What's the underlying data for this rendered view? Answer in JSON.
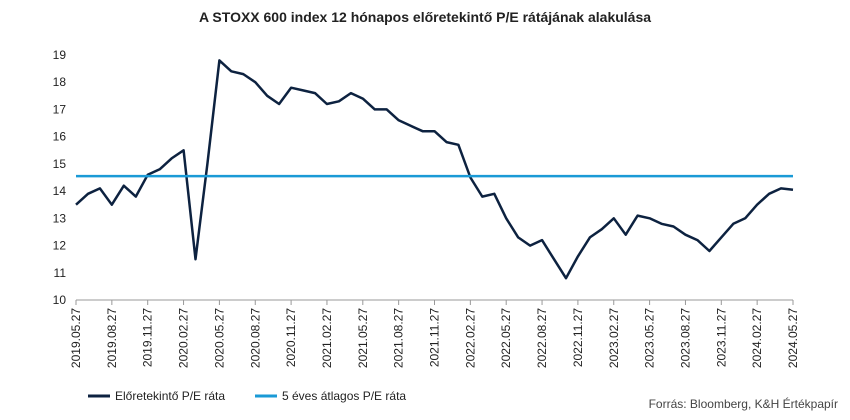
{
  "chart_data": {
    "type": "line",
    "title": "A STOXX 600 index 12 hónapos előretekintő P/E rátájának alakulása",
    "source": "Forrás: Bloomberg, K&H Értékpapír",
    "x": [
      "2019.05.27",
      "2019.06.27",
      "2019.07.27",
      "2019.08.27",
      "2019.09.27",
      "2019.10.27",
      "2019.11.27",
      "2019.12.27",
      "2020.01.27",
      "2020.02.27",
      "2020.03.27",
      "2020.04.27",
      "2020.05.27",
      "2020.06.27",
      "2020.07.27",
      "2020.08.27",
      "2020.09.27",
      "2020.10.27",
      "2020.11.27",
      "2020.12.27",
      "2021.01.27",
      "2021.02.27",
      "2021.03.27",
      "2021.04.27",
      "2021.05.27",
      "2021.06.27",
      "2021.07.27",
      "2021.08.27",
      "2021.09.27",
      "2021.10.27",
      "2021.11.27",
      "2021.12.27",
      "2022.01.27",
      "2022.02.27",
      "2022.03.27",
      "2022.04.27",
      "2022.05.27",
      "2022.06.27",
      "2022.07.27",
      "2022.08.27",
      "2022.09.27",
      "2022.10.27",
      "2022.11.27",
      "2022.12.27",
      "2023.01.27",
      "2023.02.27",
      "2023.03.27",
      "2023.04.27",
      "2023.05.27",
      "2023.06.27",
      "2023.07.27",
      "2023.08.27",
      "2023.09.27",
      "2023.10.27",
      "2023.11.27",
      "2023.12.27",
      "2024.01.27",
      "2024.02.27",
      "2024.03.27",
      "2024.04.27",
      "2024.05.27"
    ],
    "xticks": [
      "2019.05.27",
      "2019.08.27",
      "2019.11.27",
      "2020.02.27",
      "2020.05.27",
      "2020.08.27",
      "2020.11.27",
      "2021.02.27",
      "2021.05.27",
      "2021.08.27",
      "2021.11.27",
      "2022.02.27",
      "2022.05.27",
      "2022.08.27",
      "2022.11.27",
      "2023.02.27",
      "2023.05.27",
      "2023.08.27",
      "2023.11.27",
      "2024.02.27",
      "2024.05.27"
    ],
    "series": [
      {
        "name": "Előretekintő P/E ráta",
        "color": "#0d2240",
        "values": [
          13.5,
          13.9,
          14.1,
          13.5,
          14.2,
          13.8,
          14.6,
          14.8,
          15.2,
          15.5,
          11.5,
          15.0,
          18.8,
          18.4,
          18.3,
          18.0,
          17.5,
          17.2,
          17.8,
          17.7,
          17.6,
          17.2,
          17.3,
          17.6,
          17.4,
          17.0,
          17.0,
          16.6,
          16.4,
          16.2,
          16.2,
          15.8,
          15.7,
          14.5,
          13.8,
          13.9,
          13.0,
          12.3,
          12.0,
          12.2,
          11.5,
          10.8,
          11.6,
          12.3,
          12.6,
          13.0,
          12.4,
          13.1,
          13.0,
          12.8,
          12.7,
          12.4,
          12.2,
          11.8,
          12.3,
          12.8,
          13.0,
          13.5,
          13.9,
          14.1,
          14.05
        ]
      },
      {
        "name": "5 éves átlagos P/E ráta",
        "color": "#1a9ad6",
        "values": [
          14.55,
          14.55,
          14.55,
          14.55,
          14.55,
          14.55,
          14.55,
          14.55,
          14.55,
          14.55,
          14.55,
          14.55,
          14.55,
          14.55,
          14.55,
          14.55,
          14.55,
          14.55,
          14.55,
          14.55,
          14.55,
          14.55,
          14.55,
          14.55,
          14.55,
          14.55,
          14.55,
          14.55,
          14.55,
          14.55,
          14.55,
          14.55,
          14.55,
          14.55,
          14.55,
          14.55,
          14.55,
          14.55,
          14.55,
          14.55,
          14.55,
          14.55,
          14.55,
          14.55,
          14.55,
          14.55,
          14.55,
          14.55,
          14.55,
          14.55,
          14.55,
          14.55,
          14.55,
          14.55,
          14.55,
          14.55,
          14.55,
          14.55,
          14.55,
          14.55,
          14.55
        ]
      }
    ],
    "ylim": [
      10,
      19
    ],
    "yticks": [
      10,
      11,
      12,
      13,
      14,
      15,
      16,
      17,
      18,
      19
    ],
    "grid": false
  }
}
